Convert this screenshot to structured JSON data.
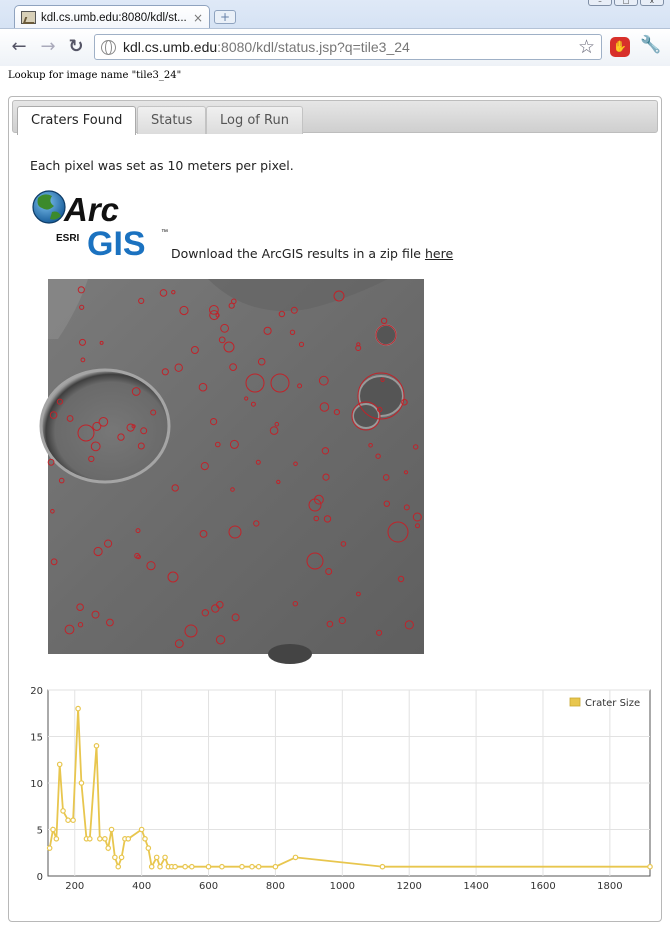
{
  "browser": {
    "tab_title": "kdl.cs.umb.edu:8080/kdl/st...",
    "tab_close": "×",
    "new_tab": "+",
    "back": "←",
    "forward": "→",
    "reload": "↻",
    "url_host": "kdl.cs.umb.edu",
    "url_rest": ":8080/kdl/status.jsp?q=tile3_24",
    "star": "☆",
    "wrench": "🔧",
    "win_minimize": "–",
    "win_maximize": "□",
    "win_close": "x"
  },
  "page": {
    "lookup_text": "Lookup for image name \"tile3_24\"",
    "tabs": [
      {
        "label": "Craters Found",
        "active": true
      },
      {
        "label": "Status",
        "active": false
      },
      {
        "label": "Log of Run",
        "active": false
      }
    ],
    "pixel_note": "Each pixel was set as 10 meters per pixel.",
    "logo": {
      "arc": "Arc",
      "gis": "GIS",
      "esri": "ESRI",
      "tm": "™"
    },
    "download_text": "Download the ArcGIS results in a zip file ",
    "download_link": "here"
  },
  "chart_data": {
    "type": "line",
    "title": "",
    "xlabel": "",
    "ylabel": "",
    "xlim": [
      120,
      1920
    ],
    "ylim": [
      0,
      20
    ],
    "xticks": [
      200,
      400,
      600,
      800,
      1000,
      1200,
      1400,
      1600,
      1800
    ],
    "yticks": [
      0,
      5,
      10,
      15,
      20
    ],
    "grid": true,
    "legend_position": "top-right",
    "color": "#e8c64e",
    "series": [
      {
        "name": "Crater Size",
        "x": [
          125,
          135,
          145,
          155,
          165,
          180,
          195,
          210,
          220,
          235,
          245,
          265,
          275,
          290,
          300,
          310,
          320,
          330,
          340,
          350,
          360,
          400,
          410,
          420,
          430,
          445,
          455,
          470,
          480,
          490,
          500,
          530,
          550,
          600,
          640,
          700,
          730,
          750,
          800,
          860,
          1120,
          1920
        ],
        "values": [
          3,
          5,
          4,
          12,
          7,
          6,
          6,
          18,
          10,
          4,
          4,
          14,
          4,
          4,
          3,
          5,
          2,
          1,
          2,
          4,
          4,
          5,
          4,
          3,
          1,
          2,
          1,
          2,
          1,
          1,
          1,
          1,
          1,
          1,
          1,
          1,
          1,
          1,
          1,
          2,
          1,
          1
        ]
      }
    ]
  }
}
